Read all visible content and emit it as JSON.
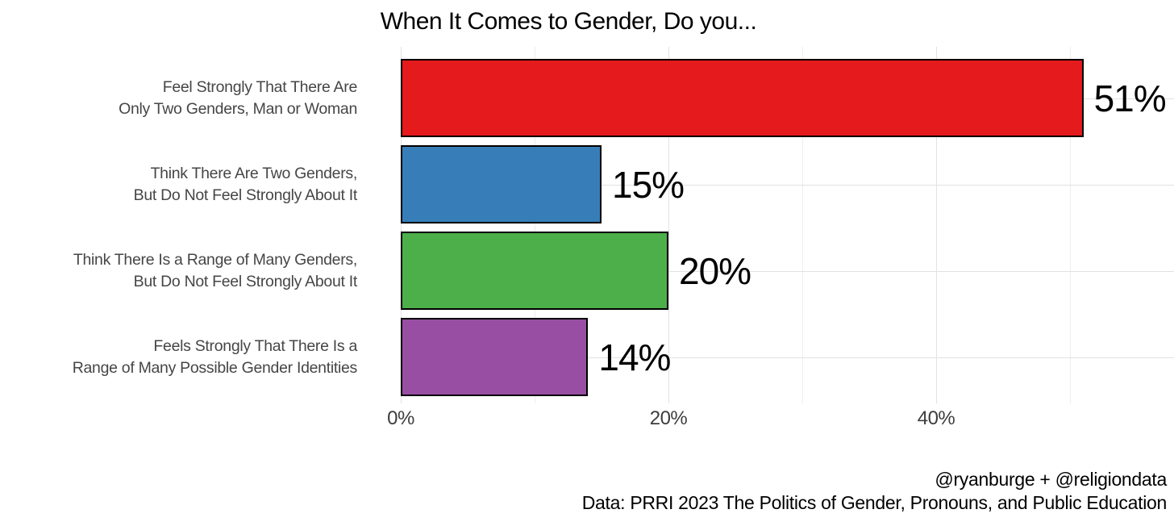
{
  "title": "When It Comes to Gender, Do you...",
  "chart_data": {
    "type": "bar",
    "orientation": "horizontal",
    "title": "When It Comes to Gender, Do you...",
    "categories": [
      [
        "Feel Strongly That There Are",
        "Only Two Genders, Man or Woman"
      ],
      [
        "Think There Are Two Genders,",
        "But Do Not Feel Strongly About It"
      ],
      [
        "Think There Is a Range of Many Genders,",
        "But Do Not Feel Strongly About It"
      ],
      [
        "Feels Strongly That There Is a",
        "Range of Many Possible Gender Identities"
      ]
    ],
    "values": [
      51,
      15,
      20,
      14
    ],
    "value_labels": [
      "51%",
      "15%",
      "20%",
      "14%"
    ],
    "bar_colors": [
      "#e41a1c",
      "#377eb8",
      "#4daf4a",
      "#984ea3"
    ],
    "bar_border_color": "#000000",
    "xlabel": "",
    "ylabel": "",
    "x_ticks": [
      {
        "value": 0,
        "label": "0%"
      },
      {
        "value": 20,
        "label": "20%"
      },
      {
        "value": 40,
        "label": "40%"
      }
    ],
    "x_minor_ticks": [
      10,
      30,
      50
    ],
    "xlim": [
      0,
      57.8
    ],
    "grid": "vertical major + minor, horizontal at category centers",
    "legend": "none"
  },
  "caption": {
    "line1": "@ryanburge + @religiondata",
    "line2": "Data: PRRI 2023 The Politics of Gender, Pronouns, and Public Education"
  },
  "colors": {
    "background": "#ffffff",
    "grid_major": "#e2e2e2",
    "grid_minor": "#ededed",
    "axis_text": "#3d3d3d",
    "category_text": "#464646",
    "title_text": "#000000",
    "value_text": "#000000"
  }
}
